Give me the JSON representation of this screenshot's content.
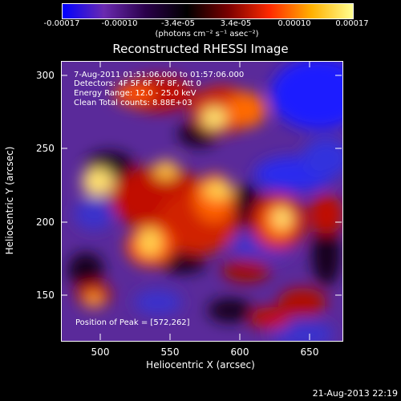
{
  "colorbar": {
    "labels": [
      "-0.00017",
      "-0.00010",
      "-3.4e-05",
      "3.4e-05",
      "0.00010",
      "0.00017"
    ],
    "units": "(photons cm⁻² s⁻¹ asec⁻²)",
    "colors": [
      "#0000ff",
      "#6a2ab0",
      "#2a004a",
      "#000000",
      "#7a0000",
      "#ff2a00",
      "#ffb000",
      "#ffff90"
    ]
  },
  "title": "Reconstructed RHESSI Image",
  "annotations": {
    "time": "7-Aug-2011 01:51:06.000 to 01:57:06.000",
    "detectors": "Detectors: 4F 5F 6F 7F 8F, Att 0",
    "energy": "Energy Range: 12.0 - 25.0 keV",
    "clean": "Clean    Total counts: 8.88E+03",
    "peak": "Position of Peak = [572,262]"
  },
  "axes": {
    "xlabel": "Heliocentric X (arcsec)",
    "ylabel": "Heliocentric Y (arcsec)",
    "xticks": [
      "500",
      "550",
      "600",
      "650"
    ],
    "yticks": [
      "300",
      "250",
      "200",
      "150"
    ]
  },
  "timestamp": "21-Aug-2013 22:19"
}
